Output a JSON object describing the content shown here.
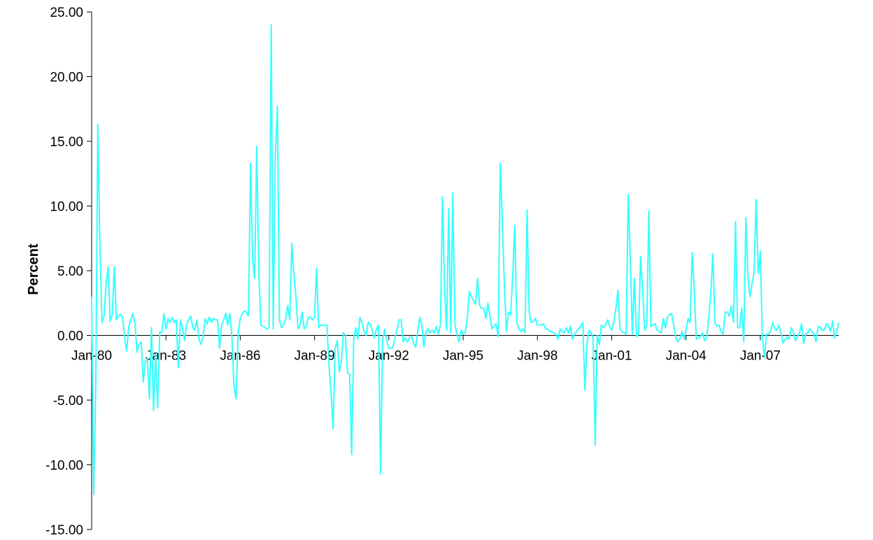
{
  "chart_data": {
    "type": "line",
    "title": "",
    "xlabel": "",
    "ylabel": "Percent",
    "ylim": [
      -15,
      25
    ],
    "y_ticks": [
      25,
      20,
      15,
      10,
      5,
      0,
      -5,
      -10,
      -15
    ],
    "y_tick_labels": [
      "25.00",
      "20.00",
      "15.00",
      "10.00",
      "5.00",
      "0.00",
      "-5.00",
      "-10.00",
      "-15.00"
    ],
    "x_tick_labels": [
      "Jan-80",
      "Jan-83",
      "Jan-86",
      "Jan-89",
      "Jan-92",
      "Jan-95",
      "Jan-98",
      "Jan-01",
      "Jan-04",
      "Jan-07"
    ],
    "x_range": [
      "Jan-80",
      "Mar-07"
    ],
    "x_start": "Jan-80",
    "grid": false,
    "legend": "none",
    "line_color": "#33FFFF",
    "series": [
      {
        "values": [
          3.0,
          -12.3,
          -4.0,
          16.3,
          7.0,
          1.0,
          1.5,
          4.0,
          5.3,
          1.1,
          1.6,
          5.3,
          1.2,
          1.5,
          1.6,
          1.4,
          -0.2,
          -1.2,
          0.7,
          1.2,
          1.7,
          0.9,
          -1.3,
          -0.7,
          -0.5,
          -3.6,
          -2.0,
          -1.8,
          -4.9,
          0.6,
          -5.8,
          -1.5,
          -5.6,
          0.3,
          0.2,
          1.7,
          0.5,
          1.3,
          1.0,
          1.4,
          1.0,
          1.2,
          -2.5,
          1.2,
          0.6,
          -0.4,
          0.8,
          1.2,
          1.5,
          0.6,
          0.4,
          1.2,
          -0.3,
          -0.7,
          -0.1,
          1.3,
          0.9,
          1.4,
          1.0,
          1.3,
          1.2,
          1.2,
          -1.0,
          0.8,
          1.2,
          1.7,
          0.8,
          1.7,
          -0.2,
          -4.0,
          -4.9,
          0.2,
          1.3,
          1.7,
          1.9,
          1.8,
          1.5,
          13.3,
          5.9,
          4.4,
          14.6,
          5.0,
          0.8,
          0.7,
          0.6,
          0.5,
          0.6,
          24.0,
          0.5,
          13.8,
          17.7,
          1.2,
          0.6,
          0.8,
          1.3,
          2.3,
          1.2,
          7.1,
          4.8,
          3.0,
          0.5,
          0.8,
          1.8,
          0.5,
          0.7,
          1.4,
          1.4,
          1.2,
          1.4,
          5.2,
          0.6,
          0.8,
          0.8,
          0.8,
          0.8,
          -2.2,
          -4.5,
          -7.2,
          -1.0,
          -0.4,
          -2.8,
          -2.0,
          0.2,
          0.0,
          -2.9,
          -3.0,
          -9.2,
          -0.2,
          0.6,
          -0.3,
          1.4,
          1.0,
          0.3,
          0.0,
          1.0,
          0.9,
          0.4,
          -0.2,
          0.5,
          0.8,
          -10.7,
          -0.4,
          0.5,
          -0.4,
          -1.0,
          -1.0,
          -0.9,
          -0.2,
          0.5,
          1.2,
          1.2,
          -0.5,
          -0.2,
          -0.5,
          -0.2,
          -0.1,
          -0.6,
          -0.9,
          0.3,
          1.4,
          0.8,
          -0.9,
          0.3,
          0.5,
          0.2,
          0.4,
          0.2,
          0.7,
          0.1,
          0.8,
          10.7,
          3.6,
          0.4,
          9.8,
          0.2,
          11.0,
          0.9,
          0.1,
          -0.5,
          0.4,
          0.1,
          0.2,
          1.3,
          3.4,
          3.0,
          2.7,
          2.4,
          4.4,
          2.3,
          2.1,
          2.1,
          1.3,
          2.5,
          1.5,
          0.5,
          0.7,
          0.9,
          -0.1,
          13.3,
          8.9,
          3.8,
          0.3,
          1.8,
          1.6,
          4.4,
          8.5,
          1.0,
          0.5,
          0.3,
          0.5,
          0.2,
          9.7,
          1.8,
          1.0,
          1.1,
          1.3,
          0.8,
          0.8,
          0.8,
          0.9,
          0.5,
          0.5,
          0.3,
          0.3,
          0.2,
          0.1,
          -0.3,
          0.5,
          0.3,
          0.2,
          0.6,
          0.2,
          0.7,
          -0.3,
          0.1,
          0.3,
          0.5,
          0.7,
          1.0,
          -4.2,
          -0.7,
          0.4,
          0.2,
          -0.2,
          -8.5,
          0.0,
          -0.7,
          0.8,
          0.6,
          0.8,
          1.2,
          0.7,
          0.4,
          1.0,
          2.0,
          3.5,
          0.5,
          0.3,
          0.2,
          0.1,
          10.9,
          6.0,
          0.1,
          4.4,
          -0.1,
          0.1,
          6.1,
          3.5,
          0.4,
          0.8,
          9.6,
          0.7,
          0.8,
          0.9,
          0.4,
          0.3,
          0.2,
          1.3,
          0.6,
          1.4,
          1.6,
          1.7,
          0.8,
          -0.1,
          -0.5,
          -0.3,
          0.3,
          -0.3,
          0.4,
          1.3,
          1.0,
          6.4,
          3.5,
          -0.3,
          -0.2,
          -0.1,
          0.2,
          -0.4,
          -0.2,
          1.3,
          3.2,
          6.3,
          1.0,
          0.7,
          0.8,
          0.3,
          0.1,
          1.8,
          1.8,
          1.5,
          2.3,
          1.0,
          8.8,
          0.6,
          0.6,
          2.1,
          -0.5,
          9.1,
          4.5,
          3.0,
          4.0,
          4.9,
          10.5,
          4.8,
          6.5,
          -0.2,
          -1.7,
          0.1,
          0.1,
          0.3,
          1.0,
          0.5,
          0.4,
          0.8,
          0.2,
          -0.6,
          -0.3,
          -0.1,
          -0.3,
          0.6,
          0.3,
          -0.4,
          -0.1,
          0.2,
          0.9,
          -0.6,
          0.1,
          0.2,
          0.5,
          0.3,
          0.1,
          -0.5,
          0.7,
          0.6,
          0.4,
          0.4,
          0.9,
          0.8,
          0.3,
          1.1,
          -0.2,
          0.3,
          1.0
        ]
      }
    ]
  }
}
